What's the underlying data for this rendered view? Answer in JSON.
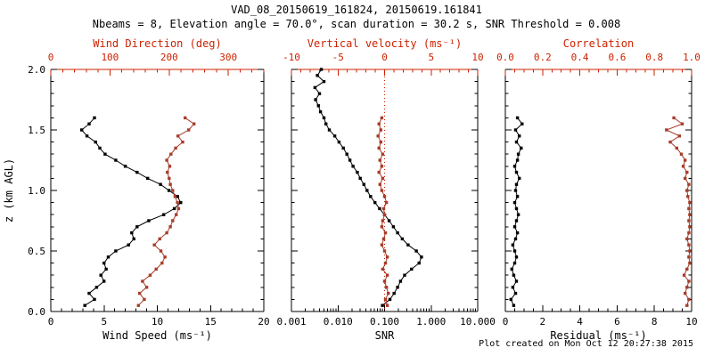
{
  "header": {
    "title": "VAD_08_20150619_161824, 20150619.161841",
    "subtitle": "Nbeams = 8, Elevation angle = 70.0°, scan duration = 30.2 s, SNR Threshold = 0.008"
  },
  "footer": {
    "created": "Plot created on Mon Oct 12 20:27:38 2015"
  },
  "colors": {
    "frame": "#000000",
    "axis_red": "#cc2200",
    "series_red": "#a63d2a",
    "series_black": "#000000",
    "background": "#ffffff"
  },
  "chart_data": [
    {
      "type": "line",
      "panel": "wind",
      "ylabel": "z (km AGL)",
      "ylim": [
        0,
        2
      ],
      "yticks": [
        0,
        0.5,
        1,
        1.5,
        2
      ],
      "ytick_labels": [
        "0.0",
        "0.5",
        "1.0",
        "1.5",
        "2.0"
      ],
      "bottom_axis": {
        "label": "Wind Speed (ms⁻¹)",
        "lim": [
          0,
          20
        ],
        "ticks": [
          0,
          5,
          10,
          15,
          20
        ],
        "tick_labels": [
          "0",
          "5",
          "10",
          "15",
          "20"
        ],
        "minor_step": 1
      },
      "top_axis": {
        "label": "Wind Direction (deg)",
        "lim": [
          0,
          360
        ],
        "ticks": [
          0,
          100,
          200,
          300
        ],
        "tick_labels": [
          "0",
          "100",
          "200",
          "300"
        ],
        "minor_step": 20
      },
      "series": [
        {
          "name": "wind-speed",
          "axis": "bottom",
          "color": "black",
          "z": [
            0.05,
            0.1,
            0.15,
            0.2,
            0.25,
            0.3,
            0.35,
            0.4,
            0.45,
            0.5,
            0.55,
            0.6,
            0.65,
            0.7,
            0.75,
            0.8,
            0.85,
            0.9,
            0.95,
            1.0,
            1.05,
            1.1,
            1.15,
            1.2,
            1.25,
            1.3,
            1.35,
            1.4,
            1.45,
            1.5,
            1.55,
            1.6
          ],
          "values": [
            3.2,
            4.1,
            3.6,
            4.3,
            5.0,
            4.7,
            5.2,
            5.0,
            5.4,
            6.1,
            7.3,
            7.8,
            7.6,
            8.1,
            9.2,
            10.6,
            11.6,
            12.2,
            11.9,
            11.1,
            10.3,
            9.1,
            8.1,
            7.0,
            6.1,
            5.1,
            4.6,
            4.2,
            3.4,
            2.9,
            3.6,
            4.1
          ]
        },
        {
          "name": "wind-direction",
          "axis": "top",
          "color": "red",
          "z": [
            0.05,
            0.1,
            0.15,
            0.2,
            0.25,
            0.3,
            0.35,
            0.4,
            0.45,
            0.5,
            0.55,
            0.6,
            0.65,
            0.7,
            0.75,
            0.8,
            0.85,
            0.9,
            0.95,
            1.0,
            1.05,
            1.1,
            1.15,
            1.2,
            1.25,
            1.3,
            1.35,
            1.4,
            1.45,
            1.5,
            1.55,
            1.6
          ],
          "values": [
            148,
            158,
            150,
            162,
            155,
            168,
            178,
            188,
            193,
            186,
            175,
            184,
            196,
            202,
            206,
            212,
            216,
            214,
            210,
            206,
            202,
            200,
            197,
            201,
            196,
            203,
            211,
            223,
            215,
            233,
            242,
            227
          ]
        }
      ]
    },
    {
      "type": "line",
      "panel": "snr",
      "ylim": [
        0,
        2
      ],
      "yticks": [
        0,
        0.5,
        1,
        1.5,
        2
      ],
      "bottom_axis": {
        "label": "SNR",
        "scale": "log",
        "lim": [
          0.001,
          10
        ],
        "ticks": [
          0.001,
          0.01,
          0.1,
          1,
          10
        ],
        "tick_labels": [
          "0.001",
          "0.010",
          "0.100",
          "1.000",
          "10.000"
        ]
      },
      "top_axis": {
        "label": "Vertical velocity (ms⁻¹)",
        "lim": [
          -10,
          10
        ],
        "ticks": [
          -10,
          -5,
          0,
          5,
          10
        ],
        "tick_labels": [
          "-10",
          "-5",
          "0",
          "5",
          "10"
        ],
        "minor_step": 1
      },
      "zero_line": {
        "value": 0,
        "axis": "top",
        "style": "dotted"
      },
      "series": [
        {
          "name": "snr",
          "axis": "bottom",
          "color": "black",
          "z": [
            0.05,
            0.1,
            0.15,
            0.2,
            0.25,
            0.3,
            0.35,
            0.4,
            0.45,
            0.5,
            0.55,
            0.6,
            0.65,
            0.7,
            0.75,
            0.8,
            0.85,
            0.9,
            0.95,
            1.0,
            1.05,
            1.1,
            1.15,
            1.2,
            1.25,
            1.3,
            1.35,
            1.4,
            1.45,
            1.5,
            1.55,
            1.6,
            1.65,
            1.7,
            1.75,
            1.8,
            1.85,
            1.9,
            1.95,
            2.0
          ],
          "values": [
            0.09,
            0.13,
            0.16,
            0.19,
            0.22,
            0.27,
            0.38,
            0.55,
            0.62,
            0.48,
            0.32,
            0.24,
            0.19,
            0.155,
            0.125,
            0.1,
            0.078,
            0.062,
            0.05,
            0.042,
            0.036,
            0.03,
            0.026,
            0.021,
            0.018,
            0.0155,
            0.013,
            0.0105,
            0.0085,
            0.0065,
            0.0055,
            0.005,
            0.0042,
            0.0038,
            0.0033,
            0.004,
            0.0032,
            0.005,
            0.0036,
            0.0044
          ]
        },
        {
          "name": "vertical-velocity",
          "axis": "top",
          "color": "red",
          "z": [
            0.05,
            0.1,
            0.15,
            0.2,
            0.25,
            0.3,
            0.35,
            0.4,
            0.45,
            0.5,
            0.55,
            0.6,
            0.65,
            0.7,
            0.75,
            0.8,
            0.85,
            0.9,
            0.95,
            1.0,
            1.05,
            1.1,
            1.15,
            1.2,
            1.25,
            1.3,
            1.35,
            1.4,
            1.45,
            1.5,
            1.55,
            1.6
          ],
          "values": [
            0.3,
            0.1,
            0.4,
            0.2,
            0.0,
            0.3,
            -0.2,
            0.1,
            0.3,
            0.0,
            -0.3,
            -0.1,
            0.1,
            -0.3,
            -0.2,
            0.0,
            -0.1,
            0.2,
            0.0,
            -0.3,
            -0.5,
            -0.2,
            -0.6,
            -0.3,
            -0.5,
            -0.2,
            -0.6,
            -0.4,
            -0.7,
            -0.4,
            -0.6,
            -0.3
          ]
        }
      ]
    },
    {
      "type": "line",
      "panel": "residual",
      "ylim": [
        0,
        2
      ],
      "yticks": [
        0,
        0.5,
        1,
        1.5,
        2
      ],
      "bottom_axis": {
        "label": "Residual (ms⁻¹)",
        "lim": [
          0,
          10
        ],
        "ticks": [
          0,
          2,
          4,
          6,
          8,
          10
        ],
        "tick_labels": [
          "0",
          "2",
          "4",
          "6",
          "8",
          "10"
        ],
        "minor_step": 0.5
      },
      "top_axis": {
        "label": "Correlation",
        "lim": [
          0,
          1
        ],
        "ticks": [
          0,
          0.2,
          0.4,
          0.6,
          0.8,
          1
        ],
        "tick_labels": [
          "0.0",
          "0.2",
          "0.4",
          "0.6",
          "0.8",
          "1.0"
        ],
        "minor_step": 0.05
      },
      "series": [
        {
          "name": "residual",
          "axis": "bottom",
          "color": "black",
          "z": [
            0.05,
            0.1,
            0.15,
            0.2,
            0.25,
            0.3,
            0.35,
            0.4,
            0.45,
            0.5,
            0.55,
            0.6,
            0.65,
            0.7,
            0.75,
            0.8,
            0.85,
            0.9,
            0.95,
            1.0,
            1.05,
            1.1,
            1.15,
            1.2,
            1.25,
            1.3,
            1.35,
            1.4,
            1.45,
            1.5,
            1.55,
            1.6
          ],
          "values": [
            0.45,
            0.3,
            0.55,
            0.4,
            0.6,
            0.45,
            0.35,
            0.5,
            0.6,
            0.5,
            0.4,
            0.55,
            0.65,
            0.5,
            0.6,
            0.7,
            0.6,
            0.5,
            0.65,
            0.55,
            0.6,
            0.75,
            0.6,
            0.5,
            0.65,
            0.7,
            0.85,
            0.6,
            0.75,
            0.55,
            0.9,
            0.65
          ]
        },
        {
          "name": "correlation",
          "axis": "top",
          "color": "red",
          "z": [
            0.05,
            0.1,
            0.15,
            0.2,
            0.25,
            0.3,
            0.35,
            0.4,
            0.45,
            0.5,
            0.55,
            0.6,
            0.65,
            0.7,
            0.75,
            0.8,
            0.85,
            0.9,
            0.95,
            1.0,
            1.05,
            1.1,
            1.15,
            1.2,
            1.25,
            1.3,
            1.35,
            1.4,
            1.45,
            1.5,
            1.55,
            1.6
          ],
          "values": [
            0.975,
            0.985,
            0.965,
            0.975,
            0.985,
            0.96,
            0.975,
            0.99,
            0.985,
            0.99,
            0.985,
            0.975,
            0.985,
            0.99,
            0.985,
            0.99,
            0.985,
            0.99,
            0.98,
            0.975,
            0.985,
            0.965,
            0.975,
            0.955,
            0.965,
            0.945,
            0.92,
            0.885,
            0.935,
            0.865,
            0.95,
            0.905
          ]
        }
      ]
    }
  ]
}
